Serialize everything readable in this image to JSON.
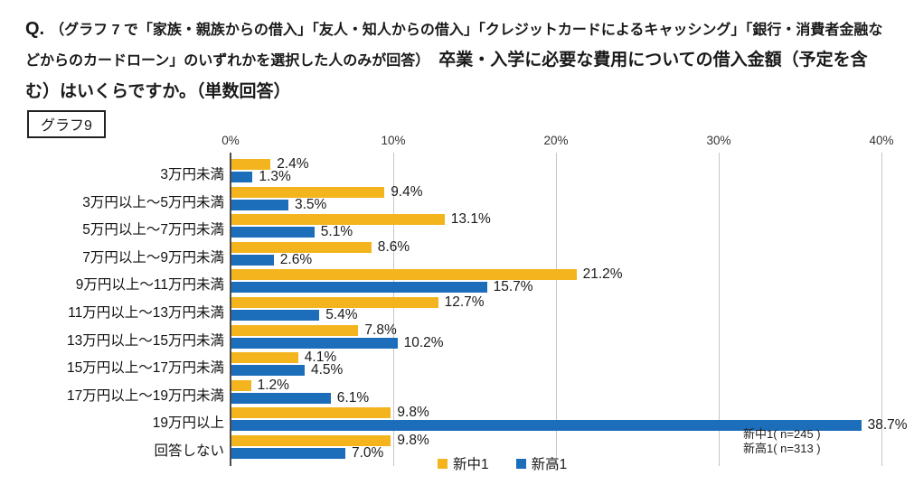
{
  "question": {
    "prefix": "Q.",
    "condition": "（グラフ 7 で「家族・親族からの借入」「友人・知人からの借入」「クレジットカードによるキャッシング」「銀行・消費者金融などからのカードローン」のいずれかを選択した人のみが回答）",
    "main": "卒業・入学に必要な費用についての借入金額（予定を含む）はいくらですか。（単数回答）"
  },
  "graph_label": "グラフ9",
  "chart_data": {
    "type": "bar",
    "orientation": "horizontal",
    "title": "卒業・入学に必要な費用についての借入金額（予定を含む）",
    "categories": [
      "3万円未満",
      "3万円以上～5万円未満",
      "5万円以上～7万円未満",
      "7万円以上～9万円未満",
      "9万円以上～11万円未満",
      "11万円以上～13万円未満",
      "13万円以上～15万円未満",
      "15万円以上～17万円未満",
      "17万円以上～19万円未満",
      "19万円以上",
      "回答しない"
    ],
    "series": [
      {
        "name": "新中1",
        "color": "#F4B41D",
        "values": [
          2.4,
          9.4,
          13.1,
          8.6,
          21.2,
          12.7,
          7.8,
          4.1,
          1.2,
          9.8,
          9.8
        ]
      },
      {
        "name": "新高1",
        "color": "#1C6DBA",
        "values": [
          1.3,
          3.5,
          5.1,
          2.6,
          15.7,
          5.4,
          10.2,
          4.5,
          6.1,
          38.7,
          7.0
        ]
      }
    ],
    "x_ticks": [
      "0%",
      "10%",
      "20%",
      "30%",
      "40%"
    ],
    "x_tick_values": [
      0,
      10,
      20,
      30,
      40
    ],
    "xlim": [
      0,
      42
    ],
    "value_suffix": "%",
    "grid_color": "#c6c6c6",
    "axis_color": "#4a4a4a",
    "legend": [
      "新中1",
      "新高1"
    ],
    "legend_position": "bottom",
    "notes": [
      "新中1( n=245 )",
      "新高1( n=313 )"
    ]
  }
}
